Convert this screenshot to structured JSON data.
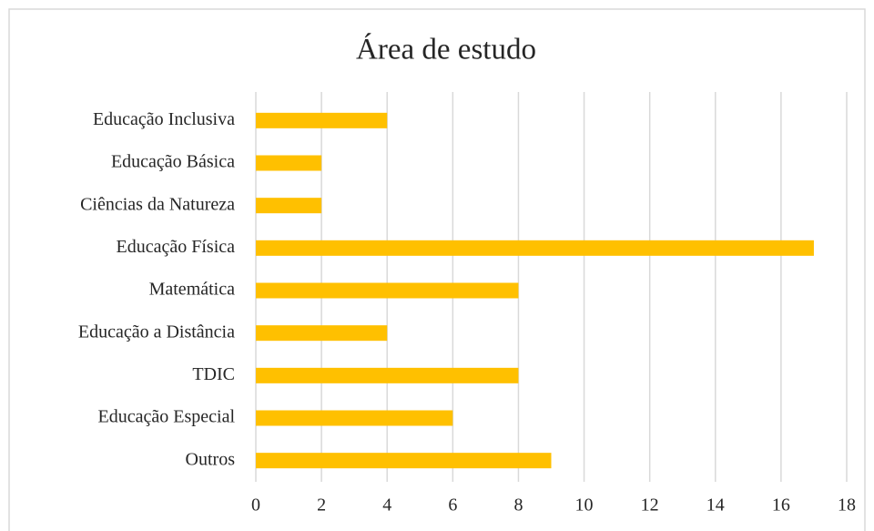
{
  "chart_data": {
    "type": "bar",
    "orientation": "horizontal",
    "title": "Área de estudo",
    "categories": [
      "Educação Inclusiva",
      "Educação Básica",
      "Ciências da Natureza",
      "Educação Física",
      "Matemática",
      "Educação a Distância",
      "TDIC",
      "Educação Especial",
      "Outros"
    ],
    "values": [
      4,
      2,
      2,
      17,
      8,
      4,
      8,
      6,
      9
    ],
    "color": "#ffc000",
    "xlim": [
      0,
      18
    ],
    "xticks": [
      0,
      2,
      4,
      6,
      8,
      10,
      12,
      14,
      16,
      18
    ],
    "grid": true
  }
}
